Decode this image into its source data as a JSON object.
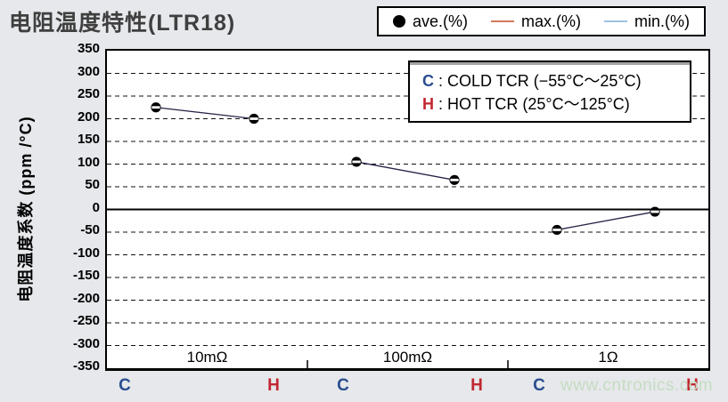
{
  "page": {
    "title": "电阻温度特性(LTR18)",
    "watermark": "www.cntronics.com"
  },
  "legend": {
    "items": [
      {
        "label": "ave.(%)",
        "marker": "circle-icon",
        "color": "#000000"
      },
      {
        "label": "max.(%)",
        "marker": "line-icon",
        "color": "#d4795b"
      },
      {
        "label": "min.(%)",
        "marker": "line-icon",
        "color": "#9fc3e3"
      }
    ]
  },
  "annotation": {
    "items": [
      {
        "key": "C",
        "sep": " : ",
        "text": "COLD TCR (−55°C〜25°C)",
        "key_color": "#2a4d8f"
      },
      {
        "key": "H",
        "sep": " : ",
        "text": "HOT TCR (25°C〜125°C)",
        "key_color": "#c12731"
      }
    ]
  },
  "colors": {
    "background": "#e6e8eb",
    "plot_background": "#ffffff",
    "frame": "#000000",
    "title_text": "#3f3f3f",
    "cold_c": "#2a4d8f",
    "hot_h": "#c12731",
    "ave_marker": "#000000",
    "max_line": "#d4795b",
    "min_line": "#9fc3e3",
    "series_line": "#252547",
    "watermark": "#c5dcc2"
  },
  "chart_data": {
    "type": "line",
    "title": "电阻温度特性(LTR18)",
    "ylabel": "电阻温度系数 (ppm /°C)",
    "ylim": [
      -350,
      350
    ],
    "ytick_step": 50,
    "grid": "horizontal dashed every 50 ppm, solid line at 0",
    "legend_entries": [
      "ave.(%)",
      "max.(%)",
      "min.(%)"
    ],
    "x_point_labels": [
      "C",
      "H"
    ],
    "categories": [
      "10mΩ",
      "100mΩ",
      "1Ω"
    ],
    "groups": [
      {
        "category": "10mΩ",
        "points": [
          {
            "label": "C",
            "ave": 225
          },
          {
            "label": "H",
            "ave": 200
          }
        ]
      },
      {
        "category": "100mΩ",
        "points": [
          {
            "label": "C",
            "ave": 105
          },
          {
            "label": "H",
            "ave": 65
          }
        ]
      },
      {
        "category": "1Ω",
        "points": [
          {
            "label": "C",
            "ave": -45
          },
          {
            "label": "H",
            "ave": -5
          }
        ]
      }
    ],
    "note": "max.(%) and min.(%) markers overlap the ave.(%) markers at this scale; C = COLD TCR (−55°C〜25°C), H = HOT TCR (25°C〜125°C)"
  }
}
